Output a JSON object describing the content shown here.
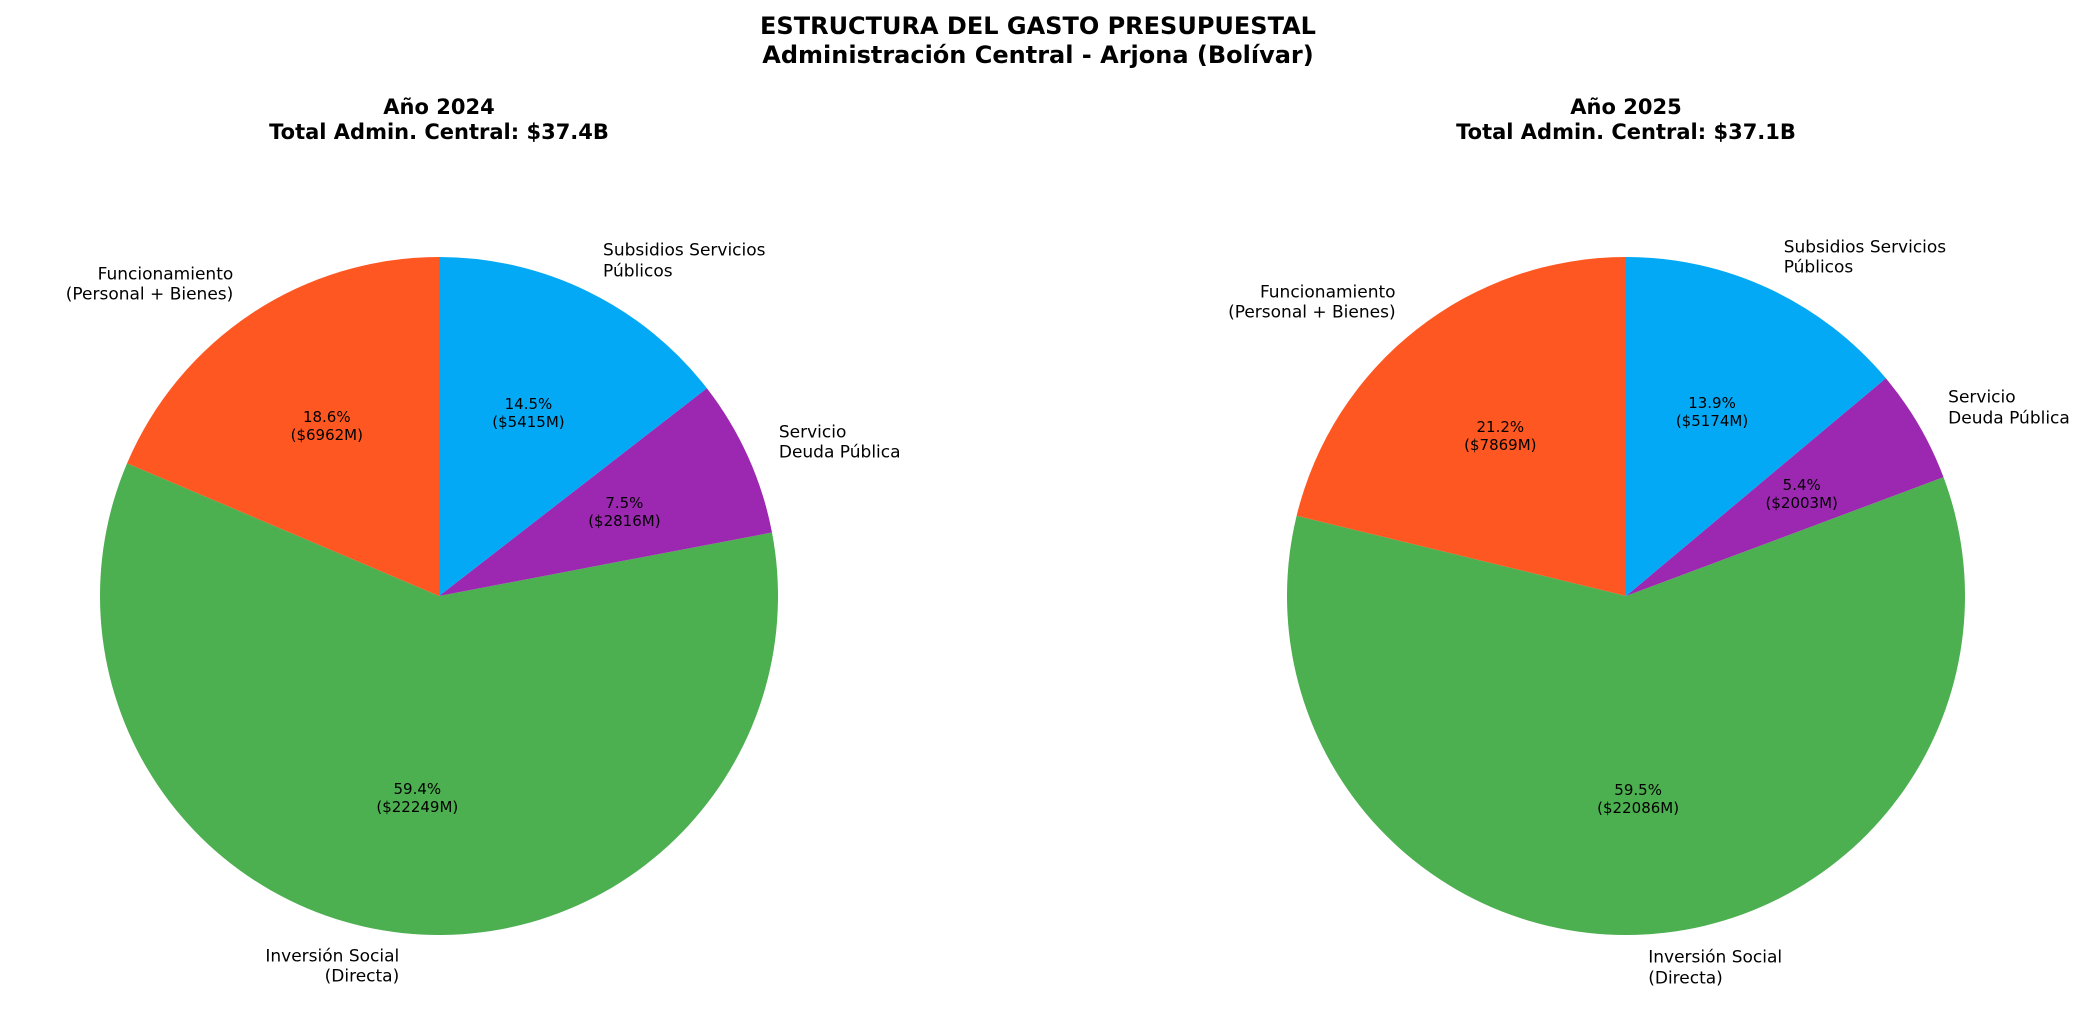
{
  "title": "ESTRUCTURA DEL GASTO PRESUPUESTAL\nAdministración Central - Arjona (Bolívar)",
  "chart_data": [
    {
      "type": "pie",
      "title": "Año 2024\nTotal Admin. Central: $37.4B",
      "categories": [
        "Funcionamiento\n(Personal + Bienes)",
        "Inversión Social\n(Directa)",
        "Servicio\nDeuda Pública",
        "Subsidios Servicios\nPúblicos"
      ],
      "values": [
        18.6,
        59.4,
        7.5,
        14.5
      ],
      "value_labels": [
        "18.6%\n($6962M)",
        "59.4%\n($22249M)",
        "7.5%\n($2816M)",
        "14.5%\n($5415M)"
      ],
      "colors": [
        "#FF5722",
        "#4CAF50",
        "#9C27B0",
        "#03A9F4"
      ]
    },
    {
      "type": "pie",
      "title": "Año 2025\nTotal Admin. Central: $37.1B",
      "categories": [
        "Funcionamiento\n(Personal + Bienes)",
        "Inversión Social\n(Directa)",
        "Servicio\nDeuda Pública",
        "Subsidios Servicios\nPúblicos"
      ],
      "values": [
        21.2,
        59.5,
        5.4,
        13.9
      ],
      "value_labels": [
        "21.2%\n($7869M)",
        "59.5%\n($22086M)",
        "5.4%\n($2003M)",
        "13.9%\n($5174M)"
      ],
      "colors": [
        "#FF5722",
        "#4CAF50",
        "#9C27B0",
        "#03A9F4"
      ]
    }
  ]
}
